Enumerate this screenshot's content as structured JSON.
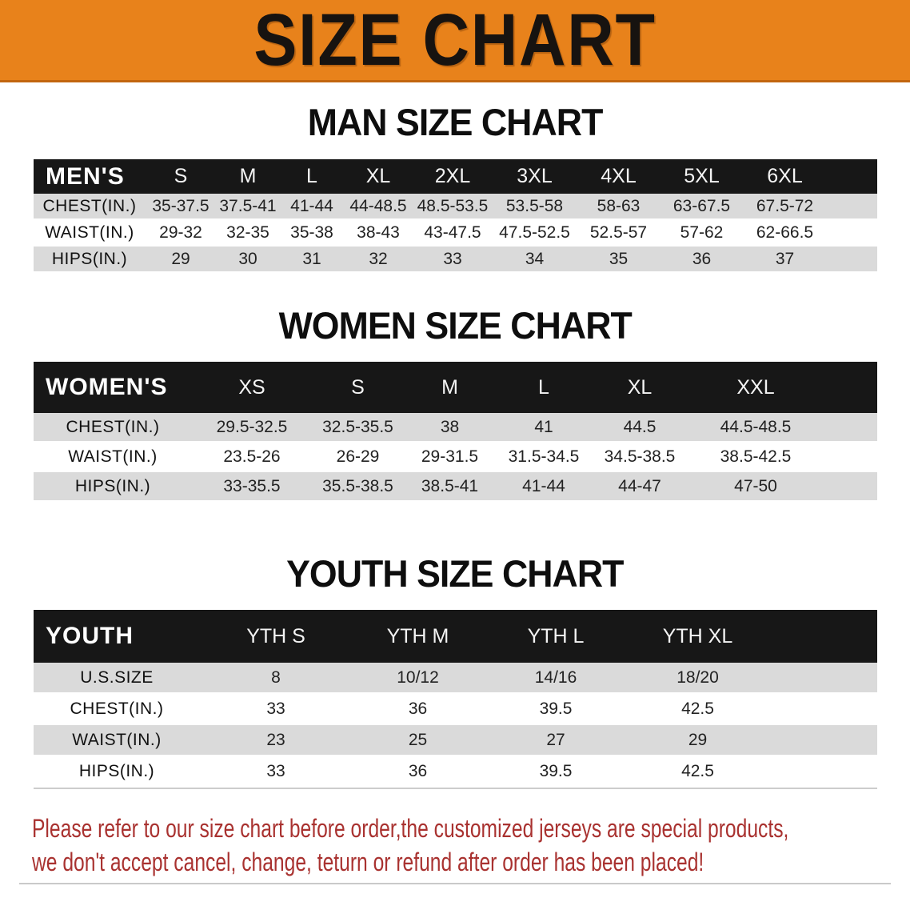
{
  "banner": {
    "title": "SIZE CHART"
  },
  "colors": {
    "banner_bg": "#E8821B",
    "table_header_bg": "#171717",
    "row_stripe": "#DADADA",
    "notice_text": "#A93230"
  },
  "sections": [
    {
      "heading": "MAN SIZE CHART",
      "group_label": "MEN'S",
      "sizes": [
        "S",
        "M",
        "L",
        "XL",
        "2XL",
        "3XL",
        "4XL",
        "5XL",
        "6XL"
      ],
      "rows": [
        {
          "label": "CHEST(IN.)",
          "values": [
            "35-37.5",
            "37.5-41",
            "41-44",
            "44-48.5",
            "48.5-53.5",
            "53.5-58",
            "58-63",
            "63-67.5",
            "67.5-72"
          ]
        },
        {
          "label": "WAIST(IN.)",
          "values": [
            "29-32",
            "32-35",
            "35-38",
            "38-43",
            "43-47.5",
            "47.5-52.5",
            "52.5-57",
            "57-62",
            "62-66.5"
          ]
        },
        {
          "label": "HIPS(IN.)",
          "values": [
            "29",
            "30",
            "31",
            "32",
            "33",
            "34",
            "35",
            "36",
            "37"
          ]
        }
      ]
    },
    {
      "heading": "WOMEN SIZE CHART",
      "group_label": "WOMEN'S",
      "sizes": [
        "XS",
        "S",
        "M",
        "L",
        "XL",
        "XXL"
      ],
      "rows": [
        {
          "label": "CHEST(IN.)",
          "values": [
            "29.5-32.5",
            "32.5-35.5",
            "38",
            "41",
            "44.5",
            "44.5-48.5"
          ]
        },
        {
          "label": "WAIST(IN.)",
          "values": [
            "23.5-26",
            "26-29",
            "29-31.5",
            "31.5-34.5",
            "34.5-38.5",
            "38.5-42.5"
          ]
        },
        {
          "label": "HIPS(IN.)",
          "values": [
            "33-35.5",
            "35.5-38.5",
            "38.5-41",
            "41-44",
            "44-47",
            "47-50"
          ]
        }
      ]
    },
    {
      "heading": "YOUTH SIZE CHART",
      "group_label": "YOUTH",
      "sizes": [
        "YTH S",
        "YTH M",
        "YTH L",
        "YTH XL"
      ],
      "rows": [
        {
          "label": "U.S.SIZE",
          "values": [
            "8",
            "10/12",
            "14/16",
            "18/20"
          ]
        },
        {
          "label": "CHEST(IN.)",
          "values": [
            "33",
            "36",
            "39.5",
            "42.5"
          ]
        },
        {
          "label": "WAIST(IN.)",
          "values": [
            "23",
            "25",
            "27",
            "29"
          ]
        },
        {
          "label": "HIPS(IN.)",
          "values": [
            "33",
            "36",
            "39.5",
            "42.5"
          ]
        }
      ]
    }
  ],
  "footer": {
    "line1": "Please refer to our size chart before order,the customized jerseys are special products,",
    "line2": "we don't accept cancel, change, teturn or refund after order has been placed!"
  }
}
